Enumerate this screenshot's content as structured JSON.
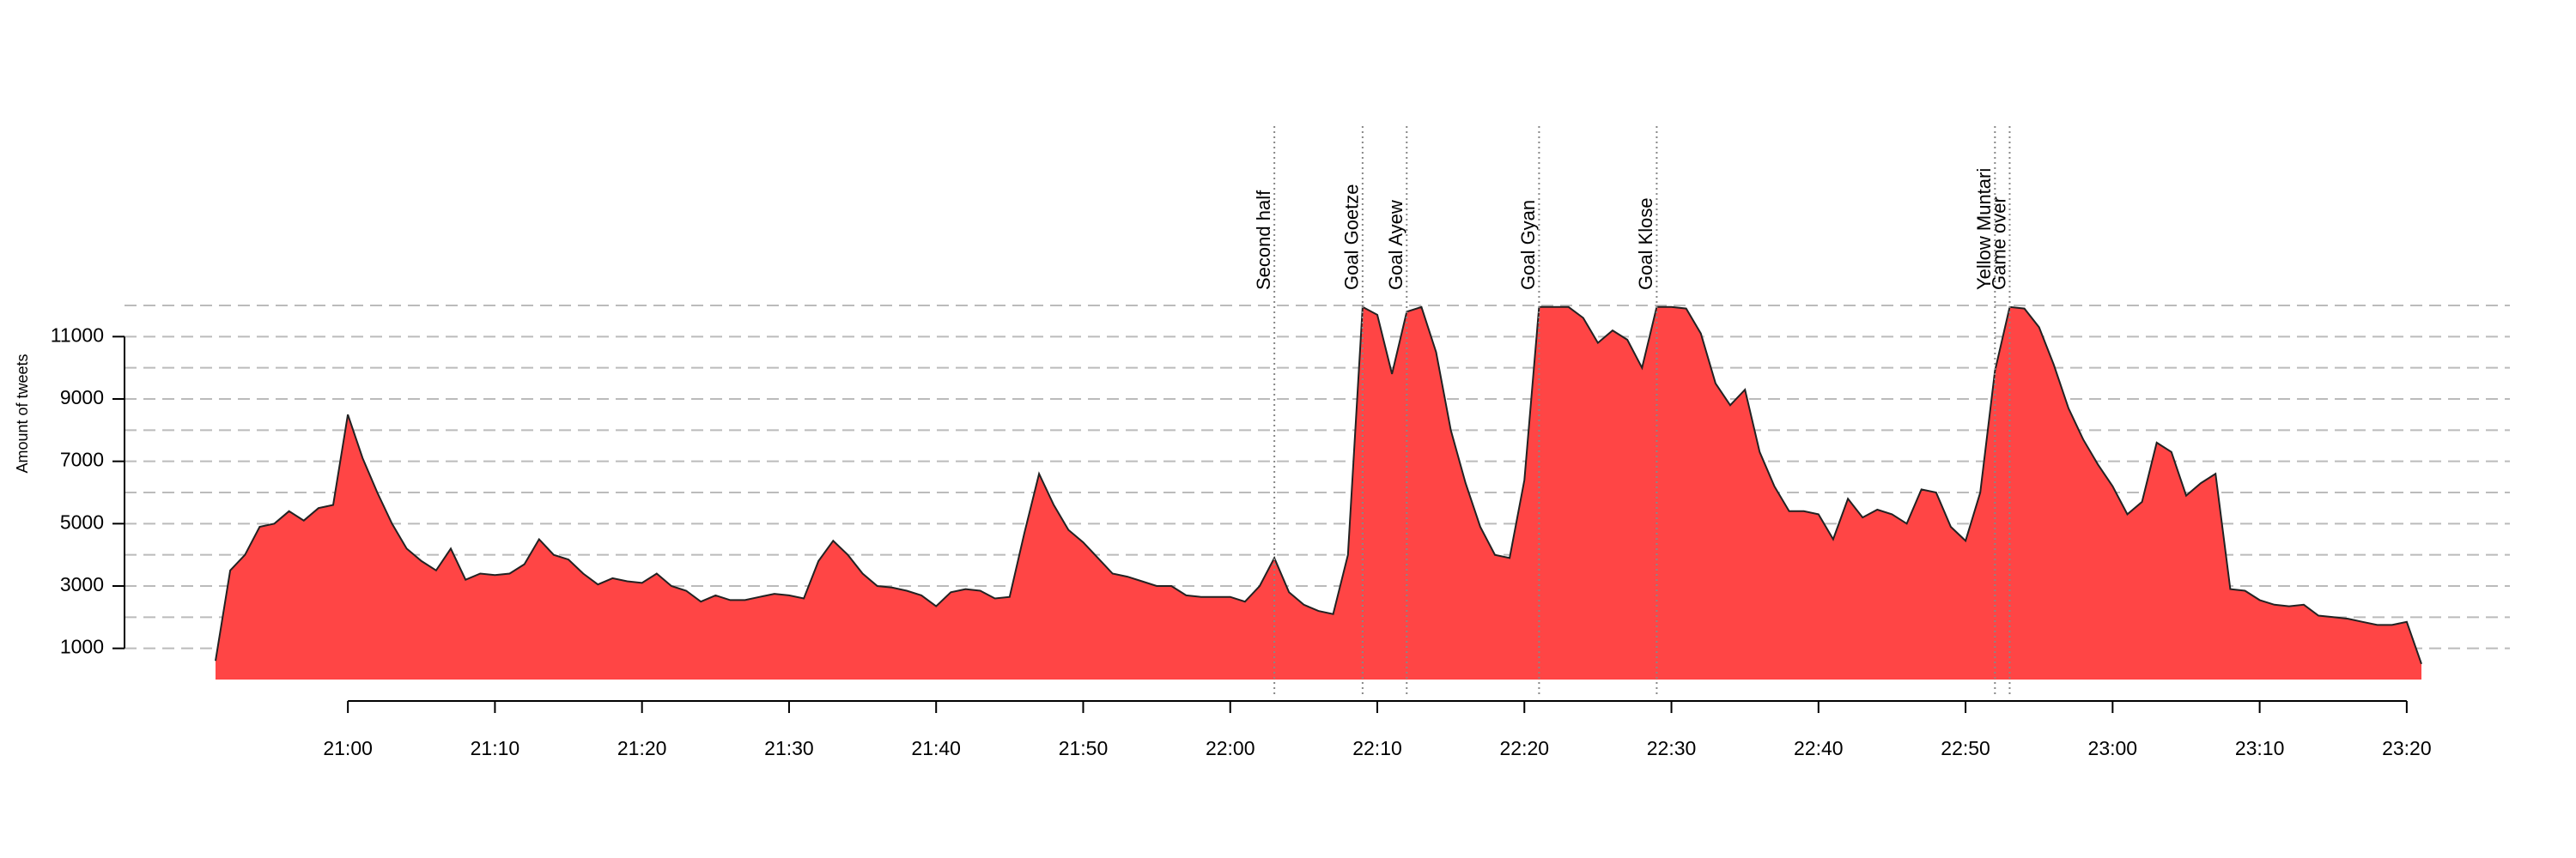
{
  "chart_data": {
    "type": "area",
    "y_label": "Amount of tweets",
    "fill_color": "#ff4545",
    "line_color": "#222222",
    "x": [
      "20:51",
      "20:52",
      "20:53",
      "20:54",
      "20:55",
      "20:56",
      "20:57",
      "20:58",
      "20:59",
      "21:00",
      "21:01",
      "21:02",
      "21:03",
      "21:04",
      "21:05",
      "21:06",
      "21:07",
      "21:08",
      "21:09",
      "21:10",
      "21:11",
      "21:12",
      "21:13",
      "21:14",
      "21:15",
      "21:16",
      "21:17",
      "21:18",
      "21:19",
      "21:20",
      "21:21",
      "21:22",
      "21:23",
      "21:24",
      "21:25",
      "21:26",
      "21:27",
      "21:28",
      "21:29",
      "21:30",
      "21:31",
      "21:32",
      "21:33",
      "21:34",
      "21:35",
      "21:36",
      "21:37",
      "21:38",
      "21:39",
      "21:40",
      "21:41",
      "21:42",
      "21:43",
      "21:44",
      "21:45",
      "21:46",
      "21:47",
      "21:48",
      "21:49",
      "21:50",
      "21:51",
      "21:52",
      "21:53",
      "21:54",
      "21:55",
      "21:56",
      "21:57",
      "21:58",
      "21:59",
      "22:00",
      "22:01",
      "22:02",
      "22:03",
      "22:04",
      "22:05",
      "22:06",
      "22:07",
      "22:08",
      "22:09",
      "22:10",
      "22:11",
      "22:12",
      "22:13",
      "22:14",
      "22:15",
      "22:16",
      "22:17",
      "22:18",
      "22:19",
      "22:20",
      "22:21",
      "22:22",
      "22:23",
      "22:24",
      "22:25",
      "22:26",
      "22:27",
      "22:28",
      "22:29",
      "22:30",
      "22:31",
      "22:32",
      "22:33",
      "22:34",
      "22:35",
      "22:36",
      "22:37",
      "22:38",
      "22:39",
      "22:40",
      "22:41",
      "22:42",
      "22:43",
      "22:44",
      "22:45",
      "22:46",
      "22:47",
      "22:48",
      "22:49",
      "22:50",
      "22:51",
      "22:52",
      "22:53",
      "22:54",
      "22:55",
      "22:56",
      "22:57",
      "22:58",
      "22:59",
      "23:00",
      "23:01",
      "23:02",
      "23:03",
      "23:04",
      "23:05",
      "23:06",
      "23:07",
      "23:08",
      "23:09",
      "23:10",
      "23:11",
      "23:12",
      "23:13",
      "23:14",
      "23:15",
      "23:16",
      "23:17",
      "23:18",
      "23:19",
      "23:20",
      "23:21"
    ],
    "values": [
      600,
      3500,
      4000,
      4900,
      5000,
      5400,
      5100,
      5500,
      5600,
      8500,
      7100,
      6000,
      5000,
      4200,
      3800,
      3500,
      4200,
      3200,
      3400,
      3350,
      3400,
      3700,
      4500,
      4000,
      3850,
      3400,
      3050,
      3250,
      3150,
      3100,
      3400,
      3000,
      2850,
      2500,
      2700,
      2550,
      2550,
      2650,
      2750,
      2700,
      2600,
      3800,
      4450,
      4000,
      3400,
      3000,
      2950,
      2850,
      2700,
      2350,
      2800,
      2900,
      2850,
      2600,
      2650,
      4700,
      6600,
      5600,
      4800,
      4400,
      3900,
      3400,
      3300,
      3150,
      3000,
      3000,
      2700,
      2650,
      2650,
      2650,
      2500,
      3000,
      3900,
      2800,
      2400,
      2200,
      2100,
      4000,
      11950,
      11700,
      9800,
      11800,
      11950,
      10500,
      8000,
      6300,
      4900,
      4000,
      3900,
      6400,
      11950,
      11950,
      11950,
      11600,
      10800,
      11200,
      10900,
      10000,
      11950,
      11950,
      11900,
      11100,
      9500,
      8800,
      9300,
      7300,
      6200,
      5400,
      5400,
      5300,
      4500,
      5800,
      5200,
      5450,
      5300,
      5000,
      6100,
      6000,
      4900,
      4450,
      6000,
      9900,
      11950,
      11900,
      11300,
      10100,
      8700,
      7700,
      6900,
      6200,
      5300,
      5700,
      7600,
      7300,
      5900,
      6300,
      6600,
      2900,
      2850,
      2550,
      2400,
      2350,
      2400,
      2050,
      2000,
      1950,
      1850,
      1750,
      1750,
      1850,
      500
    ],
    "xlim": [
      "20:51",
      "23:21"
    ],
    "xticks": [
      "21:00",
      "21:10",
      "21:20",
      "21:30",
      "21:40",
      "21:50",
      "22:00",
      "22:10",
      "22:20",
      "22:30",
      "22:40",
      "22:50",
      "23:00",
      "23:10",
      "23:20"
    ],
    "ylim": [
      0,
      12000
    ],
    "yticks": [
      1000,
      3000,
      5000,
      7000,
      9000,
      11000
    ],
    "grid_lines": [
      1000,
      2000,
      3000,
      4000,
      5000,
      6000,
      7000,
      8000,
      9000,
      10000,
      11000,
      12000
    ],
    "annotations": [
      {
        "x": "22:03",
        "label": "Second half"
      },
      {
        "x": "22:09",
        "label": "Goal Goetze"
      },
      {
        "x": "22:12",
        "label": "Goal Ayew"
      },
      {
        "x": "22:21",
        "label": "Goal Gyan"
      },
      {
        "x": "22:29",
        "label": "Goal Klose"
      },
      {
        "x": "22:52",
        "label": "Yellow Muntari"
      },
      {
        "x": "22:53",
        "label": "Game over"
      }
    ]
  }
}
